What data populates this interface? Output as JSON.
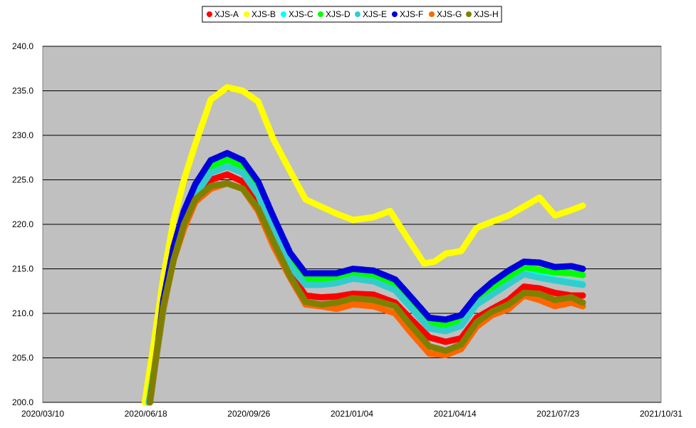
{
  "chart_data": {
    "type": "scatter",
    "title": "",
    "xlabel": "",
    "ylabel": "",
    "ylim": [
      200,
      240
    ],
    "xlim": [
      "2020/03/10",
      "2021/10/31"
    ],
    "y_ticks": [
      "200.0",
      "205.0",
      "210.0",
      "215.0",
      "220.0",
      "225.0",
      "230.0",
      "235.0",
      "240.0"
    ],
    "x_ticks": [
      "2020/03/10",
      "2020/06/18",
      "2020/09/26",
      "2021/01/04",
      "2021/04/14",
      "2021/07/23",
      "2021/10/31"
    ],
    "grid": "horizontal",
    "plot_background": "#C0C0C0",
    "legend_position": "top-center",
    "series": [
      {
        "name": "XJS-A",
        "color": "#FF0000",
        "points": [
          [
            "2020/06/20",
            200.0
          ],
          [
            "2020/06/28",
            205.5
          ],
          [
            "2020/07/05",
            211.0
          ],
          [
            "2020/07/15",
            216.5
          ],
          [
            "2020/07/25",
            220.5
          ],
          [
            "2020/08/05",
            223.0
          ],
          [
            "2020/08/20",
            225.0
          ],
          [
            "2020/09/05",
            225.6
          ],
          [
            "2020/09/20",
            224.8
          ],
          [
            "2020/10/05",
            222.3
          ],
          [
            "2020/10/20",
            218.5
          ],
          [
            "2020/11/05",
            214.5
          ],
          [
            "2020/11/20",
            212.0
          ],
          [
            "2020/12/05",
            211.8
          ],
          [
            "2020/12/20",
            211.9
          ],
          [
            "2021/01/05",
            212.2
          ],
          [
            "2021/01/25",
            212.1
          ],
          [
            "2021/02/15",
            211.2
          ],
          [
            "2021/03/01",
            209.5
          ],
          [
            "2021/03/20",
            207.3
          ],
          [
            "2021/04/05",
            206.8
          ],
          [
            "2021/04/20",
            207.2
          ],
          [
            "2021/05/05",
            209.5
          ],
          [
            "2021/05/20",
            210.5
          ],
          [
            "2021/06/05",
            211.5
          ],
          [
            "2021/06/20",
            213.0
          ],
          [
            "2021/07/05",
            212.8
          ],
          [
            "2021/07/20",
            212.3
          ],
          [
            "2021/08/05",
            212.0
          ],
          [
            "2021/08/16",
            212.0
          ]
        ]
      },
      {
        "name": "XJS-B",
        "color": "#FFFF00",
        "points": [
          [
            "2020/06/17",
            200.0
          ],
          [
            "2020/06/25",
            206.0
          ],
          [
            "2020/07/05",
            214.0
          ],
          [
            "2020/07/15",
            220.5
          ],
          [
            "2020/07/25",
            225.0
          ],
          [
            "2020/08/05",
            229.0
          ],
          [
            "2020/08/20",
            234.0
          ],
          [
            "2020/09/05",
            235.4
          ],
          [
            "2020/09/20",
            235.0
          ],
          [
            "2020/10/05",
            233.8
          ],
          [
            "2020/10/20",
            229.5
          ],
          [
            "2020/11/05",
            226.0
          ],
          [
            "2020/11/20",
            222.8
          ],
          [
            "2020/12/05",
            222.0
          ],
          [
            "2020/12/20",
            221.2
          ],
          [
            "2021/01/05",
            220.5
          ],
          [
            "2021/01/25",
            220.8
          ],
          [
            "2021/02/10",
            221.5
          ],
          [
            "2021/02/25",
            218.8
          ],
          [
            "2021/03/15",
            215.6
          ],
          [
            "2021/03/25",
            215.8
          ],
          [
            "2021/04/05",
            216.7
          ],
          [
            "2021/04/20",
            217.0
          ],
          [
            "2021/05/05",
            219.6
          ],
          [
            "2021/05/20",
            220.3
          ],
          [
            "2021/06/05",
            221.0
          ],
          [
            "2021/06/20",
            222.0
          ],
          [
            "2021/07/05",
            223.0
          ],
          [
            "2021/07/20",
            221.0
          ],
          [
            "2021/08/05",
            221.6
          ],
          [
            "2021/08/16",
            222.1
          ]
        ]
      },
      {
        "name": "XJS-C",
        "color": "#00FFFF",
        "points": [
          [
            "2020/06/21",
            200.0
          ],
          [
            "2020/06/28",
            205.0
          ],
          [
            "2020/07/05",
            210.5
          ],
          [
            "2020/07/15",
            216.5
          ],
          [
            "2020/07/25",
            220.5
          ],
          [
            "2020/08/05",
            223.5
          ],
          [
            "2020/08/20",
            226.0
          ],
          [
            "2020/09/05",
            226.8
          ],
          [
            "2020/09/20",
            226.0
          ],
          [
            "2020/10/05",
            223.5
          ],
          [
            "2020/10/20",
            219.5
          ],
          [
            "2020/11/05",
            215.5
          ],
          [
            "2020/11/20",
            213.3
          ],
          [
            "2020/12/05",
            213.3
          ],
          [
            "2020/12/20",
            213.5
          ],
          [
            "2021/01/05",
            214.0
          ],
          [
            "2021/01/25",
            213.8
          ],
          [
            "2021/02/15",
            212.8
          ],
          [
            "2021/03/01",
            211.0
          ],
          [
            "2021/03/20",
            208.5
          ],
          [
            "2021/04/05",
            208.2
          ],
          [
            "2021/04/20",
            208.8
          ],
          [
            "2021/05/05",
            211.2
          ],
          [
            "2021/05/20",
            212.3
          ],
          [
            "2021/06/05",
            213.5
          ],
          [
            "2021/06/20",
            214.5
          ],
          [
            "2021/07/05",
            214.2
          ],
          [
            "2021/07/20",
            213.8
          ],
          [
            "2021/08/05",
            213.5
          ],
          [
            "2021/08/16",
            213.3
          ]
        ]
      },
      {
        "name": "XJS-D",
        "color": "#00FF00",
        "points": [
          [
            "2020/06/21",
            200.0
          ],
          [
            "2020/06/28",
            205.0
          ],
          [
            "2020/07/05",
            211.0
          ],
          [
            "2020/07/15",
            217.0
          ],
          [
            "2020/07/25",
            221.0
          ],
          [
            "2020/08/05",
            224.0
          ],
          [
            "2020/08/20",
            226.5
          ],
          [
            "2020/09/05",
            227.3
          ],
          [
            "2020/09/20",
            226.5
          ],
          [
            "2020/10/05",
            224.0
          ],
          [
            "2020/10/20",
            220.0
          ],
          [
            "2020/11/05",
            216.0
          ],
          [
            "2020/11/20",
            213.8
          ],
          [
            "2020/12/05",
            213.8
          ],
          [
            "2020/12/20",
            214.0
          ],
          [
            "2021/01/05",
            214.5
          ],
          [
            "2021/01/25",
            214.3
          ],
          [
            "2021/02/15",
            213.2
          ],
          [
            "2021/03/01",
            211.5
          ],
          [
            "2021/03/20",
            209.0
          ],
          [
            "2021/04/05",
            208.7
          ],
          [
            "2021/04/20",
            209.3
          ],
          [
            "2021/05/05",
            211.8
          ],
          [
            "2021/05/20",
            212.8
          ],
          [
            "2021/06/05",
            214.0
          ],
          [
            "2021/06/20",
            215.2
          ],
          [
            "2021/07/05",
            214.9
          ],
          [
            "2021/07/20",
            214.6
          ],
          [
            "2021/08/05",
            214.5
          ],
          [
            "2021/08/16",
            214.3
          ]
        ]
      },
      {
        "name": "XJS-E",
        "color": "#33CCCC",
        "points": [
          [
            "2020/06/21",
            200.0
          ],
          [
            "2020/06/28",
            204.8
          ],
          [
            "2020/07/05",
            210.3
          ],
          [
            "2020/07/15",
            216.3
          ],
          [
            "2020/07/25",
            220.3
          ],
          [
            "2020/08/05",
            223.3
          ],
          [
            "2020/08/20",
            225.8
          ],
          [
            "2020/09/05",
            226.5
          ],
          [
            "2020/09/20",
            225.8
          ],
          [
            "2020/10/05",
            223.3
          ],
          [
            "2020/10/20",
            219.3
          ],
          [
            "2020/11/05",
            215.3
          ],
          [
            "2020/11/20",
            213.2
          ],
          [
            "2020/12/05",
            213.2
          ],
          [
            "2020/12/20",
            213.4
          ],
          [
            "2021/01/05",
            213.9
          ],
          [
            "2021/01/25",
            213.6
          ],
          [
            "2021/02/15",
            212.6
          ],
          [
            "2021/03/01",
            210.8
          ],
          [
            "2021/03/20",
            208.3
          ],
          [
            "2021/04/05",
            208.0
          ],
          [
            "2021/04/20",
            208.6
          ],
          [
            "2021/05/05",
            211.0
          ],
          [
            "2021/05/20",
            212.1
          ],
          [
            "2021/06/05",
            213.3
          ],
          [
            "2021/06/20",
            214.4
          ],
          [
            "2021/07/05",
            214.0
          ],
          [
            "2021/07/20",
            213.7
          ],
          [
            "2021/08/05",
            213.4
          ],
          [
            "2021/08/16",
            213.2
          ]
        ]
      },
      {
        "name": "XJS-F",
        "color": "#0000DD",
        "points": [
          [
            "2020/06/22",
            200.0
          ],
          [
            "2020/06/28",
            205.0
          ],
          [
            "2020/07/05",
            211.5
          ],
          [
            "2020/07/15",
            217.5
          ],
          [
            "2020/07/25",
            221.5
          ],
          [
            "2020/08/05",
            224.5
          ],
          [
            "2020/08/20",
            227.2
          ],
          [
            "2020/09/05",
            228.0
          ],
          [
            "2020/09/20",
            227.2
          ],
          [
            "2020/10/05",
            224.8
          ],
          [
            "2020/10/20",
            220.8
          ],
          [
            "2020/11/05",
            216.8
          ],
          [
            "2020/11/20",
            214.5
          ],
          [
            "2020/12/05",
            214.5
          ],
          [
            "2020/12/20",
            214.5
          ],
          [
            "2021/01/05",
            215.0
          ],
          [
            "2021/01/25",
            214.8
          ],
          [
            "2021/02/15",
            213.8
          ],
          [
            "2021/03/01",
            212.0
          ],
          [
            "2021/03/20",
            209.5
          ],
          [
            "2021/04/05",
            209.3
          ],
          [
            "2021/04/20",
            209.8
          ],
          [
            "2021/05/05",
            212.0
          ],
          [
            "2021/05/20",
            213.5
          ],
          [
            "2021/06/05",
            214.8
          ],
          [
            "2021/06/20",
            215.8
          ],
          [
            "2021/07/05",
            215.7
          ],
          [
            "2021/07/20",
            215.2
          ],
          [
            "2021/08/05",
            215.3
          ],
          [
            "2021/08/16",
            215.0
          ]
        ]
      },
      {
        "name": "XJS-G",
        "color": "#FF6600",
        "points": [
          [
            "2020/06/22",
            200.0
          ],
          [
            "2020/06/28",
            205.0
          ],
          [
            "2020/07/05",
            210.5
          ],
          [
            "2020/07/15",
            216.0
          ],
          [
            "2020/07/25",
            219.5
          ],
          [
            "2020/08/05",
            222.5
          ],
          [
            "2020/08/20",
            224.0
          ],
          [
            "2020/09/05",
            224.6
          ],
          [
            "2020/09/20",
            224.0
          ],
          [
            "2020/10/05",
            221.5
          ],
          [
            "2020/10/20",
            217.5
          ],
          [
            "2020/11/05",
            214.0
          ],
          [
            "2020/11/20",
            211.0
          ],
          [
            "2020/12/05",
            210.8
          ],
          [
            "2020/12/20",
            210.5
          ],
          [
            "2021/01/05",
            211.0
          ],
          [
            "2021/01/25",
            210.8
          ],
          [
            "2021/02/15",
            210.0
          ],
          [
            "2021/03/01",
            208.0
          ],
          [
            "2021/03/20",
            205.5
          ],
          [
            "2021/04/05",
            205.3
          ],
          [
            "2021/04/20",
            206.0
          ],
          [
            "2021/05/05",
            208.5
          ],
          [
            "2021/05/20",
            209.8
          ],
          [
            "2021/06/05",
            210.5
          ],
          [
            "2021/06/20",
            212.0
          ],
          [
            "2021/07/05",
            211.5
          ],
          [
            "2021/07/20",
            210.8
          ],
          [
            "2021/08/05",
            211.2
          ],
          [
            "2021/08/16",
            210.8
          ]
        ]
      },
      {
        "name": "XJS-H",
        "color": "#808000",
        "points": [
          [
            "2020/06/22",
            200.0
          ],
          [
            "2020/06/28",
            205.2
          ],
          [
            "2020/07/05",
            210.8
          ],
          [
            "2020/07/15",
            216.0
          ],
          [
            "2020/07/25",
            220.0
          ],
          [
            "2020/08/05",
            222.8
          ],
          [
            "2020/08/20",
            224.3
          ],
          [
            "2020/09/05",
            224.6
          ],
          [
            "2020/09/20",
            224.0
          ],
          [
            "2020/10/05",
            221.8
          ],
          [
            "2020/10/20",
            218.0
          ],
          [
            "2020/11/05",
            214.2
          ],
          [
            "2020/11/20",
            211.3
          ],
          [
            "2020/12/05",
            211.0
          ],
          [
            "2020/12/20",
            211.2
          ],
          [
            "2021/01/05",
            211.7
          ],
          [
            "2021/01/25",
            211.5
          ],
          [
            "2021/02/15",
            210.8
          ],
          [
            "2021/03/01",
            208.8
          ],
          [
            "2021/03/20",
            206.3
          ],
          [
            "2021/04/05",
            205.8
          ],
          [
            "2021/04/20",
            206.5
          ],
          [
            "2021/05/05",
            209.0
          ],
          [
            "2021/05/20",
            210.2
          ],
          [
            "2021/06/05",
            211.0
          ],
          [
            "2021/06/20",
            212.3
          ],
          [
            "2021/07/05",
            212.2
          ],
          [
            "2021/07/20",
            211.5
          ],
          [
            "2021/08/05",
            211.8
          ],
          [
            "2021/08/16",
            211.2
          ]
        ]
      }
    ]
  }
}
